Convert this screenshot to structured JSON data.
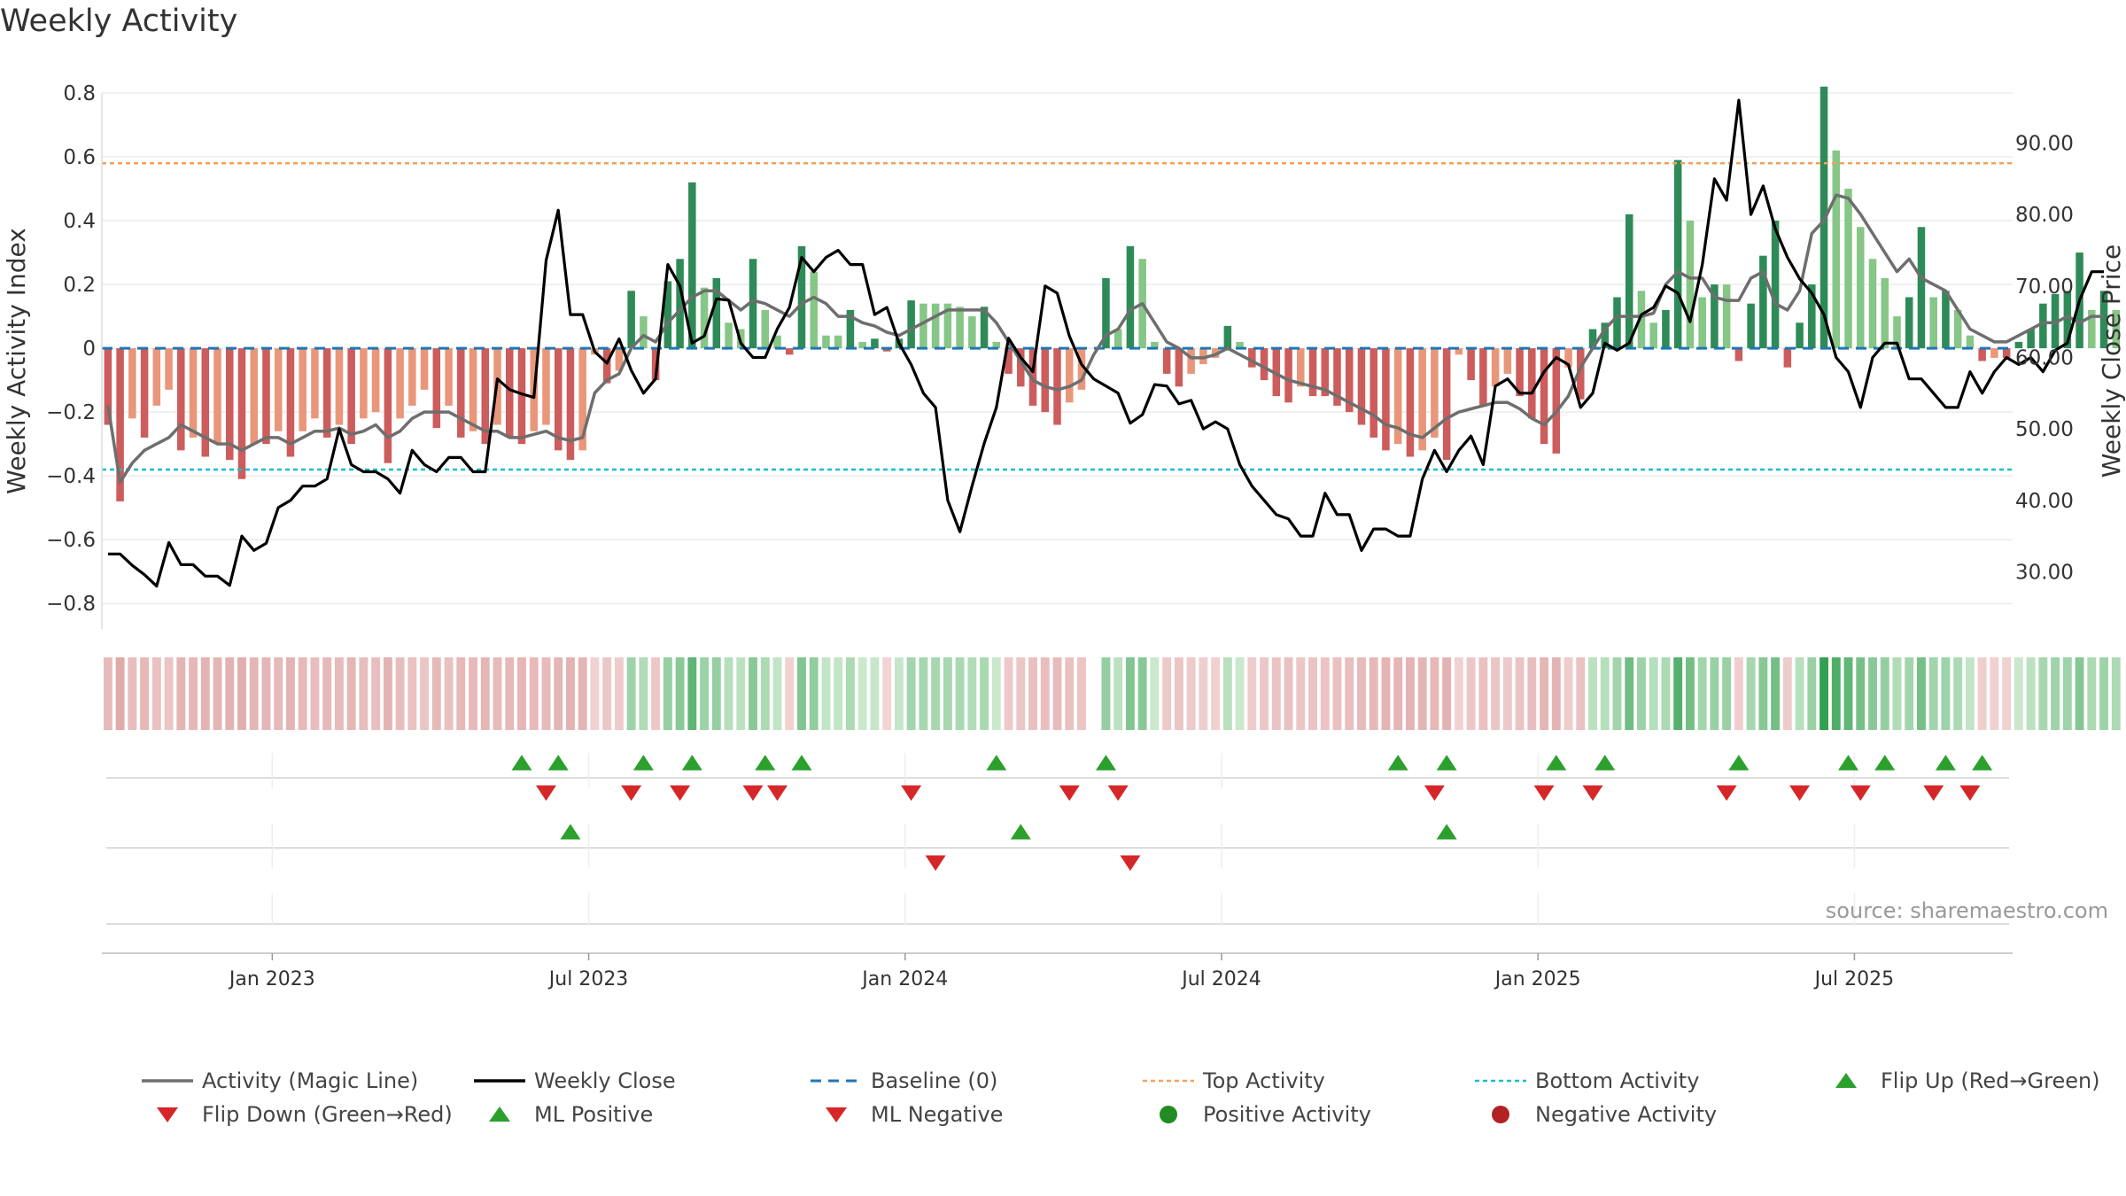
{
  "title": "Weekly Activity",
  "source": "source: sharemaestro.com",
  "colors": {
    "pos_dark": "#2e8b57",
    "pos_light": "#86c686",
    "neg_dark": "#cd5c5c",
    "neg_light": "#e9967a",
    "magic_line": "#6e6e6e",
    "close_line": "#000000",
    "baseline": "#1f77b4",
    "top_line": "#f0a35e",
    "bottom_line": "#17becf",
    "flip_up": "#2ca02c",
    "flip_down": "#d62728",
    "pos_point": "#228b22",
    "neg_point": "#b22222"
  },
  "chart_data": {
    "type": "bar",
    "title": "Weekly Activity",
    "ylabel": "Weekly Activity Index",
    "y2label": "Weekly Close Price",
    "ylim": [
      -0.88,
      0.8
    ],
    "y2lim": [
      22,
      97
    ],
    "yticks": [
      {
        "v": 0.8,
        "label": "0.8"
      },
      {
        "v": 0.6,
        "label": "0.6"
      },
      {
        "v": 0.4,
        "label": "0.4"
      },
      {
        "v": 0.2,
        "label": "0.2"
      },
      {
        "v": 0,
        "label": "0"
      },
      {
        "v": -0.2,
        "label": "−0.2"
      },
      {
        "v": -0.4,
        "label": "−0.4"
      },
      {
        "v": -0.6,
        "label": "−0.6"
      },
      {
        "v": -0.8,
        "label": "−0.8"
      }
    ],
    "y2ticks": [
      {
        "v": 90,
        "label": "90.00"
      },
      {
        "v": 80,
        "label": "80.00"
      },
      {
        "v": 70,
        "label": "70.00"
      },
      {
        "v": 60,
        "label": "60.00"
      },
      {
        "v": 50,
        "label": "50.00"
      },
      {
        "v": 40,
        "label": "40.00"
      },
      {
        "v": 30,
        "label": "30.00"
      }
    ],
    "xticks": [
      {
        "week": 14,
        "label": "Jan 2023"
      },
      {
        "week": 40,
        "label": "Jul 2023"
      },
      {
        "week": 66,
        "label": "Jan 2024"
      },
      {
        "week": 92,
        "label": "Jul 2024"
      },
      {
        "week": 118,
        "label": "Jan 2025"
      },
      {
        "week": 144,
        "label": "Jul 2025"
      }
    ],
    "weeks": 157,
    "top_activity": 0.58,
    "bottom_activity": -0.38,
    "activity": [
      -0.24,
      -0.48,
      -0.22,
      -0.28,
      -0.18,
      -0.13,
      -0.32,
      -0.28,
      -0.34,
      -0.3,
      -0.35,
      -0.41,
      -0.3,
      -0.3,
      -0.26,
      -0.34,
      -0.26,
      -0.22,
      -0.28,
      -0.24,
      -0.3,
      -0.22,
      -0.2,
      -0.36,
      -0.22,
      -0.18,
      -0.13,
      -0.25,
      -0.18,
      -0.28,
      -0.26,
      -0.3,
      -0.24,
      -0.28,
      -0.3,
      -0.26,
      -0.24,
      -0.32,
      -0.35,
      -0.32,
      -0.02,
      -0.11,
      -0.07,
      0.18,
      0.1,
      -0.1,
      0.21,
      0.28,
      0.52,
      0.19,
      0.22,
      0.08,
      0.06,
      0.28,
      0.12,
      0.04,
      -0.02,
      0.32,
      0.24,
      0.04,
      0.04,
      0.12,
      0.02,
      0.03,
      -0.01,
      0.03,
      0.15,
      0.14,
      0.14,
      0.14,
      0.13,
      0.1,
      0.13,
      0.02,
      -0.08,
      -0.12,
      -0.18,
      -0.2,
      -0.24,
      -0.17,
      -0.13,
      0,
      0.22,
      0.06,
      0.32,
      0.28,
      0.02,
      -0.08,
      -0.12,
      -0.08,
      -0.05,
      -0.03,
      0.07,
      0.02,
      -0.06,
      -0.1,
      -0.15,
      -0.17,
      -0.12,
      -0.15,
      -0.15,
      -0.18,
      -0.2,
      -0.24,
      -0.28,
      -0.32,
      -0.3,
      -0.34,
      -0.32,
      -0.28,
      -0.35,
      -0.02,
      -0.1,
      -0.18,
      -0.12,
      -0.08,
      -0.15,
      -0.22,
      -0.3,
      -0.33,
      -0.06,
      -0.16,
      0.06,
      0.08,
      0.16,
      0.42,
      0.18,
      0.08,
      0.12,
      0.59,
      0.4,
      0.16,
      0.2,
      0.2,
      -0.04,
      0.14,
      0.29,
      0.4,
      -0.06,
      0.08,
      0.2,
      0.82,
      0.62,
      0.5,
      0.38,
      0.28,
      0.22,
      0.1,
      0.16,
      0.38,
      0.16,
      0.18,
      0.12,
      0.04,
      -0.04,
      -0.03,
      -0.03,
      0.02,
      0.06,
      0.14,
      0.17,
      0.18,
      0.3,
      0.12,
      0.18,
      0.12
    ],
    "close": [
      32.5,
      32.5,
      30.9,
      29.6,
      28,
      34.1,
      31,
      31,
      29.4,
      29.4,
      28.1,
      35,
      33,
      34,
      39,
      40,
      42,
      42,
      43,
      50,
      45,
      44,
      44,
      43,
      41,
      47,
      45,
      44,
      46,
      46,
      44,
      44,
      57,
      55.5,
      54.9,
      54.4,
      73.6,
      80.6,
      66,
      66,
      60.8,
      59.2,
      62.6,
      58.2,
      55,
      57,
      73,
      70,
      62,
      63,
      68.2,
      68,
      62,
      60,
      60,
      64,
      67,
      74,
      72,
      74,
      75,
      73,
      73,
      66,
      67,
      62,
      59,
      55,
      53,
      40,
      35.6,
      42,
      48,
      53,
      62.7,
      60,
      58,
      70,
      69,
      63,
      59,
      57,
      56,
      55,
      50.8,
      52,
      56.2,
      56,
      53.5,
      54,
      50,
      51,
      50,
      45,
      42,
      40,
      38,
      37.4,
      35,
      35,
      41,
      38,
      38,
      33,
      36,
      36,
      35,
      35,
      43,
      47,
      44,
      47,
      49,
      45,
      56,
      57,
      55,
      55,
      58,
      60,
      59,
      53,
      55,
      62,
      61,
      62,
      66,
      67,
      70,
      69,
      65,
      73,
      85,
      82,
      96,
      80,
      84,
      78,
      74,
      71,
      69,
      66,
      60,
      58,
      53,
      60,
      62,
      62,
      57,
      57,
      55,
      53,
      53,
      58,
      55,
      58,
      60,
      59,
      60,
      58,
      61,
      62,
      68,
      72,
      72
    ],
    "activity_ma": [
      -0.18,
      -0.42,
      -0.36,
      -0.32,
      -0.3,
      -0.28,
      -0.24,
      -0.26,
      -0.28,
      -0.3,
      -0.3,
      -0.32,
      -0.3,
      -0.28,
      -0.28,
      -0.3,
      -0.28,
      -0.26,
      -0.26,
      -0.25,
      -0.27,
      -0.26,
      -0.24,
      -0.28,
      -0.26,
      -0.22,
      -0.2,
      -0.2,
      -0.2,
      -0.22,
      -0.24,
      -0.26,
      -0.26,
      -0.28,
      -0.28,
      -0.27,
      -0.26,
      -0.28,
      -0.29,
      -0.28,
      -0.14,
      -0.1,
      -0.08,
      0.0,
      0.04,
      0.02,
      0.08,
      0.12,
      0.16,
      0.18,
      0.18,
      0.15,
      0.12,
      0.15,
      0.14,
      0.12,
      0.1,
      0.14,
      0.16,
      0.14,
      0.1,
      0.1,
      0.08,
      0.07,
      0.05,
      0.04,
      0.06,
      0.08,
      0.1,
      0.12,
      0.12,
      0.12,
      0.12,
      0.08,
      0.02,
      -0.04,
      -0.1,
      -0.12,
      -0.13,
      -0.12,
      -0.1,
      -0.02,
      0.04,
      0.06,
      0.12,
      0.14,
      0.08,
      0.02,
      0.0,
      -0.03,
      -0.03,
      -0.02,
      0.0,
      -0.02,
      -0.04,
      -0.06,
      -0.08,
      -0.1,
      -0.11,
      -0.12,
      -0.13,
      -0.15,
      -0.17,
      -0.19,
      -0.21,
      -0.24,
      -0.25,
      -0.27,
      -0.28,
      -0.25,
      -0.22,
      -0.2,
      -0.19,
      -0.18,
      -0.17,
      -0.17,
      -0.19,
      -0.22,
      -0.24,
      -0.2,
      -0.15,
      -0.06,
      0.0,
      0.06,
      0.1,
      0.1,
      0.1,
      0.11,
      0.2,
      0.24,
      0.22,
      0.22,
      0.16,
      0.15,
      0.15,
      0.22,
      0.24,
      0.14,
      0.12,
      0.18,
      0.36,
      0.4,
      0.48,
      0.47,
      0.42,
      0.36,
      0.3,
      0.24,
      0.28,
      0.22,
      0.2,
      0.18,
      0.12,
      0.06,
      0.04,
      0.02,
      0.02,
      0.04,
      0.06,
      0.08,
      0.08,
      0.1,
      0.08,
      0.1,
      0.1
    ],
    "flip_up_weeks": [
      34,
      37,
      44,
      48,
      54,
      57,
      73,
      82,
      106,
      110,
      119,
      123,
      134,
      143,
      146,
      151,
      154
    ],
    "flip_down_weeks": [
      36,
      43,
      47,
      53,
      55,
      66,
      79,
      83,
      109,
      118,
      122,
      133,
      139,
      144,
      150,
      153
    ],
    "ml_positive_weeks": [
      38,
      75,
      110
    ],
    "ml_negative_weeks": [
      68,
      84
    ],
    "legend": [
      {
        "key": "magic",
        "label": "Activity (Magic Line)"
      },
      {
        "key": "close",
        "label": "Weekly Close"
      },
      {
        "key": "base",
        "label": "Baseline (0)"
      },
      {
        "key": "top",
        "label": "Top Activity"
      },
      {
        "key": "bottom",
        "label": "Bottom Activity"
      },
      {
        "key": "flipup",
        "label": "Flip Up (Red→Green)"
      },
      {
        "key": "flipdown",
        "label": "Flip Down (Green→Red)"
      },
      {
        "key": "mlpos",
        "label": "ML Positive"
      },
      {
        "key": "mlneg",
        "label": "ML Negative"
      },
      {
        "key": "pospt",
        "label": "Positive Activity"
      },
      {
        "key": "negpt",
        "label": "Negative Activity"
      }
    ]
  }
}
